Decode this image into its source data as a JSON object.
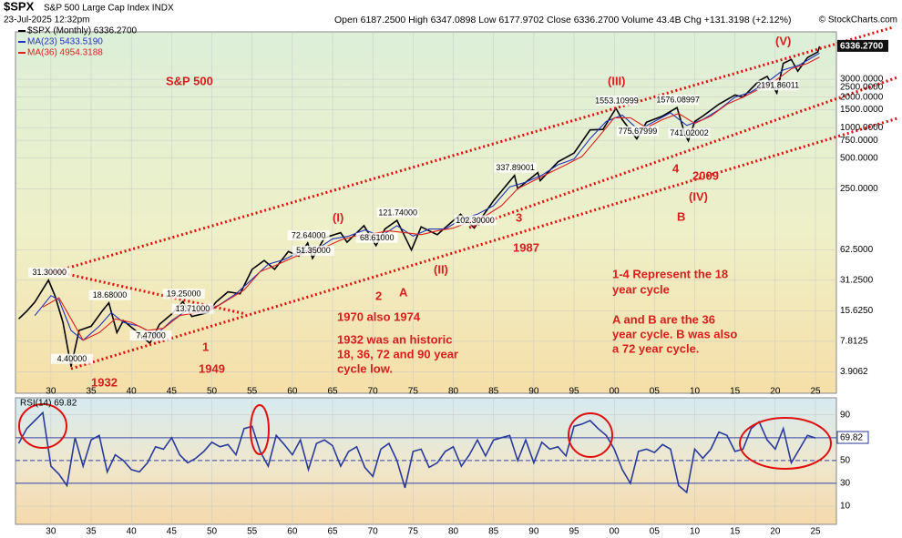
{
  "header": {
    "symbol": "$SPX",
    "name": "S&P 500 Large Cap Index INDX",
    "date": "23-Jul-2025 12:32pm",
    "quote": "Open 6187.2500  High 6347.0898  Low 6177.9702  Close 6336.2700  Volume 43.4B  Chg +131.3198 (+2.12%)",
    "source": "© StockCharts.com"
  },
  "annotations": [
    "S&P 500",
    "(V)",
    "(III)",
    "(I)",
    "(II)",
    "(IV)",
    "B",
    "A",
    "2",
    "1",
    "1949",
    "1932",
    "3",
    "1987",
    "4",
    "2009",
    "1970 also 1974",
    "1932 was an historic",
    "18, 36, 72 and 90 year",
    "cycle low.",
    "1-4 Represent the 18",
    "year cycle",
    "A and B are the 36",
    "year cycle. B was also",
    "a 72 year cycle."
  ],
  "chart_data": [
    {
      "type": "line",
      "log_scale": true,
      "grid": true,
      "last_label": "6336.2700",
      "xlim": [
        1925.6,
        2027.6
      ],
      "ylim": [
        2.4,
        8800
      ],
      "xticks": [
        {
          "value": 1930,
          "label": "30"
        },
        {
          "value": 1935,
          "label": "35"
        },
        {
          "value": 1940,
          "label": "40"
        },
        {
          "value": 1945,
          "label": "45"
        },
        {
          "value": 1950,
          "label": "50"
        },
        {
          "value": 1955,
          "label": "55"
        },
        {
          "value": 1960,
          "label": "60"
        },
        {
          "value": 1965,
          "label": "65"
        },
        {
          "value": 1970,
          "label": "70"
        },
        {
          "value": 1975,
          "label": "75"
        },
        {
          "value": 1980,
          "label": "80"
        },
        {
          "value": 1985,
          "label": "85"
        },
        {
          "value": 1990,
          "label": "90"
        },
        {
          "value": 1995,
          "label": "95"
        },
        {
          "value": 2000,
          "label": "00"
        },
        {
          "value": 2005,
          "label": "05"
        },
        {
          "value": 2010,
          "label": "10"
        },
        {
          "value": 2015,
          "label": "15"
        },
        {
          "value": 2020,
          "label": "20"
        },
        {
          "value": 2025,
          "label": "25"
        }
      ],
      "yticks": [
        3.9062,
        7.8125,
        {
          "value": 15.625,
          "label": "15.6250"
        },
        {
          "value": 31.25,
          "label": "31.2500"
        },
        {
          "value": 62.5,
          "label": "62.5000"
        },
        {
          "value": 250,
          "label": "250.0000"
        },
        {
          "value": 500,
          "label": "500.0000"
        },
        {
          "value": 750,
          "label": "750.0000"
        },
        {
          "value": 1000,
          "label": "1000.0000"
        },
        {
          "value": 1500,
          "label": "1500.0000"
        },
        {
          "value": 2000,
          "label": "2000.0000"
        },
        {
          "value": 2500,
          "label": "2500.0000"
        },
        {
          "value": 3000,
          "label": "3000.0000"
        }
      ],
      "x": [
        1926,
        1927,
        1928,
        1929.7,
        1930.5,
        1931.5,
        1932.5,
        1933.5,
        1935,
        1936.5,
        1937.2,
        1938.2,
        1939,
        1940.5,
        1942.3,
        1943.5,
        1945,
        1946.4,
        1947.5,
        1949.5,
        1950.5,
        1952,
        1953.5,
        1955,
        1956.5,
        1957.8,
        1959.5,
        1960.8,
        1961.9,
        1962.5,
        1964,
        1966,
        1966.8,
        1968.9,
        1970.4,
        1971.5,
        1973,
        1974.8,
        1976,
        1978,
        1980.9,
        1982.6,
        1985,
        1987.6,
        1988,
        1990.5,
        1990.8,
        1993,
        1995,
        1997,
        1998.6,
        2000.2,
        2001,
        2002.8,
        2004,
        2006,
        2007.8,
        2008.8,
        2009.2,
        2010,
        2011,
        2013,
        2015,
        2016,
        2018,
        2019,
        2020.2,
        2021,
        2022,
        2022.8,
        2024,
        2025.3,
        2025.5
      ],
      "series": [
        {
          "name": "$SPX (Monthly) 6336.2700",
          "color": "#000000",
          "values": [
            13,
            15.5,
            19,
            31.3,
            22,
            12,
            4.4,
            10,
            11,
            16,
            18.68,
            9.5,
            12.5,
            10,
            7.47,
            11.5,
            14.5,
            19.25,
            13.71,
            15,
            19,
            24,
            23,
            40,
            49,
            40,
            60,
            54,
            72.64,
            51.35,
            82,
            92,
            74,
            108,
            68.61,
            100,
            121.74,
            62,
            105,
            88,
            140,
            102.3,
            190,
            337.89001,
            250,
            360,
            300,
            460,
            560,
            950,
            960,
            1553.10999,
            1200,
            775.67999,
            1130,
            1300,
            1576.08997,
            850,
            741.02002,
            1150,
            1300,
            1700,
            2100,
            2000,
            2900,
            3200,
            2191.86011,
            4300,
            4700,
            3600,
            4900,
            5600,
            6336.27
          ],
          "value_labels": [
            null,
            null,
            null,
            "31.30000",
            null,
            null,
            "4.40000",
            null,
            null,
            null,
            "18.68000",
            null,
            null,
            null,
            "7.47000",
            null,
            null,
            "19.25000",
            "13.71000",
            null,
            null,
            null,
            null,
            null,
            null,
            null,
            null,
            null,
            "72.64000",
            "51.35000",
            null,
            null,
            null,
            null,
            "68.61000",
            null,
            "121.74000",
            null,
            null,
            null,
            null,
            "102.30000",
            null,
            "337.89001",
            null,
            null,
            null,
            null,
            null,
            null,
            null,
            "1553.10999",
            null,
            "775.67999",
            null,
            null,
            "1576.08997",
            null,
            "741.02002",
            null,
            null,
            null,
            null,
            null,
            null,
            null,
            "2191.86011",
            null,
            null,
            null,
            null,
            null,
            null
          ]
        },
        {
          "name": "MA(23) 5433.5190",
          "color": "#2233bb",
          "x": [
            1928,
            1930,
            1931,
            1932.5,
            1934,
            1936,
            1937.5,
            1939,
            1941,
            1943,
            1945,
            1947,
            1949,
            1951,
            1953,
            1955,
            1957,
            1959,
            1961,
            1963,
            1965,
            1967,
            1969,
            1971,
            1973,
            1975,
            1977,
            1979,
            1981,
            1983,
            1985,
            1987,
            1989,
            1991,
            1993,
            1995,
            1997,
            1999,
            2001,
            2003,
            2005,
            2007,
            2009,
            2011,
            2013,
            2015,
            2017,
            2019,
            2021,
            2023,
            2025.5
          ],
          "values": [
            14,
            22,
            20,
            10,
            8,
            11,
            15,
            12,
            11,
            9,
            12.5,
            16,
            15,
            18,
            23,
            32,
            45,
            50,
            60,
            63,
            80,
            85,
            98,
            85,
            108,
            85,
            100,
            100,
            125,
            140,
            170,
            260,
            290,
            340,
            430,
            490,
            780,
            1150,
            1330,
            950,
            1150,
            1400,
            1050,
            1200,
            1500,
            2000,
            2250,
            2800,
            3700,
            4150,
            5433.519
          ]
        },
        {
          "name": "MA(36) 4954.3188",
          "color": "#dd2222",
          "x": [
            1929,
            1931,
            1932.5,
            1934,
            1936,
            1938,
            1940,
            1942,
            1944,
            1946,
            1948,
            1950,
            1952,
            1954,
            1956,
            1958,
            1960,
            1962,
            1964,
            1966,
            1968,
            1970,
            1972,
            1974,
            1976,
            1978,
            1980,
            1982,
            1984,
            1986,
            1988,
            1990,
            1992,
            1994,
            1996,
            1998,
            2000,
            2002,
            2004,
            2006,
            2008,
            2010,
            2012,
            2014,
            2016,
            2018,
            2020,
            2022,
            2024,
            2025.5
          ],
          "values": [
            17,
            21,
            13,
            8,
            9.5,
            13,
            12,
            10,
            10.5,
            14,
            15,
            16,
            20,
            25,
            38,
            44,
            52,
            60,
            66,
            78,
            86,
            90,
            96,
            92,
            88,
            96,
            102,
            118,
            135,
            170,
            250,
            300,
            360,
            430,
            520,
            800,
            1250,
            1250,
            1000,
            1200,
            1380,
            1100,
            1300,
            1700,
            2000,
            2400,
            2900,
            3800,
            4300,
            4954.3188
          ]
        }
      ]
    },
    {
      "type": "line",
      "title": "RSI(14) 69.82",
      "grid": true,
      "reference_lines": [
        30,
        50,
        70
      ],
      "xlim": [
        1925.6,
        2027.6
      ],
      "ylim": [
        -6,
        105
      ],
      "xticks": [
        {
          "value": 1930,
          "label": "30"
        },
        {
          "value": 1935,
          "label": "35"
        },
        {
          "value": 1940,
          "label": "40"
        },
        {
          "value": 1945,
          "label": "45"
        },
        {
          "value": 1950,
          "label": "50"
        },
        {
          "value": 1955,
          "label": "55"
        },
        {
          "value": 1960,
          "label": "60"
        },
        {
          "value": 1965,
          "label": "65"
        },
        {
          "value": 1970,
          "label": "70"
        },
        {
          "value": 1975,
          "label": "75"
        },
        {
          "value": 1980,
          "label": "80"
        },
        {
          "value": 1985,
          "label": "85"
        },
        {
          "value": 1990,
          "label": "90"
        },
        {
          "value": 1995,
          "label": "95"
        },
        {
          "value": 2000,
          "label": "00"
        },
        {
          "value": 2005,
          "label": "05"
        },
        {
          "value": 2010,
          "label": "10"
        },
        {
          "value": 2015,
          "label": "15"
        },
        {
          "value": 2020,
          "label": "20"
        },
        {
          "value": 2025,
          "label": "25"
        }
      ],
      "yticks": [
        10,
        30,
        50,
        70,
        90
      ],
      "x": [
        1926,
        1927,
        1928,
        1929,
        1930,
        1931,
        1932,
        1933,
        1934,
        1935,
        1936,
        1937,
        1938,
        1939,
        1940,
        1941,
        1942,
        1943,
        1944,
        1945,
        1946,
        1947,
        1948,
        1949,
        1950,
        1951,
        1952,
        1953,
        1954,
        1955,
        1956,
        1957,
        1958,
        1959,
        1960,
        1961,
        1962,
        1963,
        1964,
        1965,
        1966,
        1967,
        1968,
        1969,
        1970,
        1971,
        1972,
        1973,
        1974,
        1975,
        1976,
        1977,
        1978,
        1979,
        1980,
        1981,
        1982,
        1983,
        1984,
        1985,
        1986,
        1987,
        1988,
        1989,
        1990,
        1991,
        1992,
        1993,
        1994,
        1995,
        1996,
        1997,
        1998,
        1999,
        2000,
        2001,
        2002,
        2003,
        2004,
        2005,
        2006,
        2007,
        2008,
        2009,
        2010,
        2011,
        2012,
        2013,
        2014,
        2015,
        2016,
        2017,
        2018,
        2019,
        2020,
        2021,
        2022,
        2023,
        2024,
        2025
      ],
      "series": [
        {
          "name": "RSI(14)",
          "color": "#2a3a9a",
          "values": [
            65,
            78,
            85,
            92,
            45,
            38,
            28,
            70,
            45,
            68,
            72,
            40,
            55,
            50,
            42,
            40,
            48,
            62,
            60,
            70,
            55,
            48,
            52,
            58,
            66,
            62,
            64,
            55,
            78,
            80,
            58,
            45,
            72,
            64,
            55,
            68,
            42,
            65,
            68,
            63,
            45,
            58,
            62,
            44,
            36,
            60,
            65,
            50,
            26,
            58,
            60,
            44,
            48,
            58,
            62,
            45,
            55,
            68,
            54,
            68,
            70,
            72,
            50,
            68,
            48,
            66,
            60,
            62,
            54,
            80,
            82,
            85,
            78,
            72,
            60,
            42,
            30,
            58,
            60,
            57,
            64,
            60,
            28,
            22,
            60,
            52,
            60,
            75,
            72,
            58,
            60,
            78,
            84,
            68,
            60,
            78,
            48,
            60,
            72,
            69.82
          ]
        }
      ]
    }
  ]
}
